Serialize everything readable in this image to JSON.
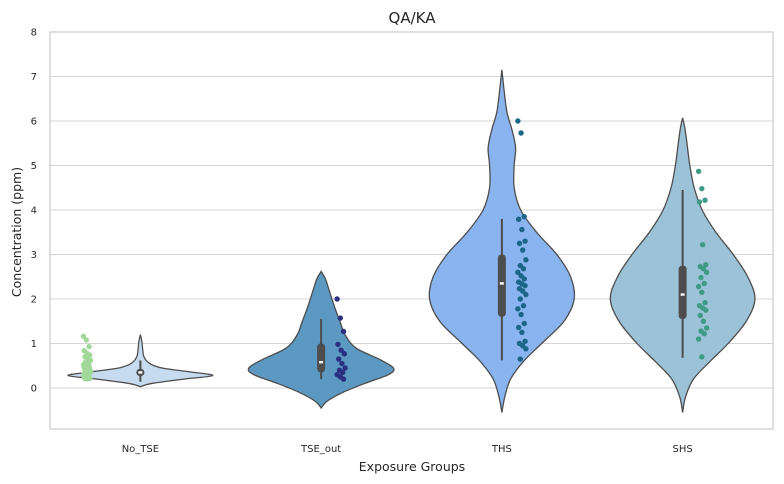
{
  "chart_data": {
    "type": "violin",
    "title": "QA/KA",
    "xlabel": "Exposure Groups",
    "ylabel": "Concentration (ppm)",
    "ylim": [
      -0.9,
      8
    ],
    "yticks": [
      0,
      1,
      2,
      3,
      4,
      5,
      6,
      7,
      8
    ],
    "grid": true,
    "legend": "none",
    "categories": [
      "No_TSE",
      "TSE_out",
      "THS",
      "SHS"
    ],
    "groups": [
      {
        "name": "No_TSE",
        "violin_color": "#c6dbef",
        "point_color": "#a1d99b",
        "box": {
          "q1": 0.27,
          "median": 0.35,
          "q3": 0.43,
          "whisker_low": 0.14,
          "whisker_high": 0.62
        },
        "density": [
          [
            0.03,
            0.0
          ],
          [
            0.1,
            0.15
          ],
          [
            0.2,
            0.6
          ],
          [
            0.28,
            1.0
          ],
          [
            0.36,
            0.7
          ],
          [
            0.45,
            0.3
          ],
          [
            0.55,
            0.13
          ],
          [
            0.7,
            0.05
          ],
          [
            0.9,
            0.03
          ],
          [
            1.05,
            0.02
          ],
          [
            1.2,
            0.0
          ]
        ],
        "points": [
          1.16,
          1.08,
          0.93,
          0.84,
          0.78,
          0.74,
          0.7,
          0.65,
          0.62,
          0.58,
          0.55,
          0.52,
          0.5,
          0.48,
          0.46,
          0.44,
          0.42,
          0.4,
          0.38,
          0.36,
          0.34,
          0.32,
          0.3,
          0.28,
          0.26,
          0.25,
          0.24,
          0.22,
          0.21,
          0.2
        ]
      },
      {
        "name": "TSE_out",
        "violin_color": "#5b98c2",
        "point_color": "#2b2f7f",
        "box": {
          "q1": 0.35,
          "median": 0.58,
          "q3": 1.0,
          "whisker_low": 0.2,
          "whisker_high": 1.55
        },
        "density": [
          [
            -0.45,
            0.0
          ],
          [
            -0.3,
            0.08
          ],
          [
            -0.1,
            0.3
          ],
          [
            0.1,
            0.6
          ],
          [
            0.3,
            0.93
          ],
          [
            0.45,
            1.0
          ],
          [
            0.65,
            0.8
          ],
          [
            0.9,
            0.48
          ],
          [
            1.2,
            0.33
          ],
          [
            1.5,
            0.26
          ],
          [
            1.8,
            0.19
          ],
          [
            2.2,
            0.11
          ],
          [
            2.45,
            0.06
          ],
          [
            2.62,
            0.0
          ]
        ],
        "points": [
          2.0,
          1.57,
          1.27,
          0.98,
          0.85,
          0.77,
          0.65,
          0.55,
          0.45,
          0.4,
          0.35,
          0.3,
          0.25,
          0.2
        ]
      },
      {
        "name": "THS",
        "violin_color": "#8ab4f0",
        "point_color": "#1b6588",
        "box": {
          "q1": 1.6,
          "median": 2.35,
          "q3": 3.0,
          "whisker_low": 0.62,
          "whisker_high": 3.8
        },
        "density": [
          [
            -0.55,
            0.0
          ],
          [
            -0.2,
            0.04
          ],
          [
            0.2,
            0.12
          ],
          [
            0.6,
            0.3
          ],
          [
            1.0,
            0.55
          ],
          [
            1.5,
            0.86
          ],
          [
            2.0,
            1.0
          ],
          [
            2.5,
            0.95
          ],
          [
            3.0,
            0.76
          ],
          [
            3.5,
            0.48
          ],
          [
            4.0,
            0.26
          ],
          [
            4.5,
            0.17
          ],
          [
            5.0,
            0.17
          ],
          [
            5.4,
            0.19
          ],
          [
            5.8,
            0.14
          ],
          [
            6.2,
            0.07
          ],
          [
            6.7,
            0.03
          ],
          [
            7.15,
            0.0
          ]
        ],
        "points": [
          6.0,
          5.73,
          3.85,
          3.79,
          3.56,
          3.3,
          3.25,
          3.1,
          2.88,
          2.75,
          2.68,
          2.6,
          2.52,
          2.45,
          2.38,
          2.34,
          2.3,
          2.23,
          2.18,
          2.1,
          2.0,
          1.85,
          1.78,
          1.65,
          1.45,
          1.36,
          1.25,
          1.05,
          1.0,
          0.95,
          0.88,
          0.65
        ]
      },
      {
        "name": "SHS",
        "violin_color": "#9cc2d8",
        "point_color": "#3f9b86",
        "box": {
          "q1": 1.55,
          "median": 2.1,
          "q3": 2.75,
          "whisker_low": 0.68,
          "whisker_high": 4.45
        },
        "density": [
          [
            -0.55,
            0.0
          ],
          [
            -0.2,
            0.04
          ],
          [
            0.2,
            0.15
          ],
          [
            0.6,
            0.38
          ],
          [
            1.0,
            0.63
          ],
          [
            1.5,
            0.88
          ],
          [
            2.0,
            1.0
          ],
          [
            2.5,
            0.9
          ],
          [
            3.0,
            0.7
          ],
          [
            3.5,
            0.46
          ],
          [
            4.0,
            0.27
          ],
          [
            4.5,
            0.16
          ],
          [
            5.0,
            0.1
          ],
          [
            5.5,
            0.06
          ],
          [
            5.85,
            0.03
          ],
          [
            6.07,
            0.0
          ]
        ],
        "points": [
          4.87,
          4.48,
          4.22,
          4.18,
          3.22,
          2.77,
          2.73,
          2.68,
          2.6,
          2.48,
          2.35,
          2.28,
          2.15,
          1.92,
          1.85,
          1.8,
          1.75,
          1.63,
          1.5,
          1.35,
          1.28,
          1.22,
          1.1,
          0.7
        ]
      }
    ]
  }
}
